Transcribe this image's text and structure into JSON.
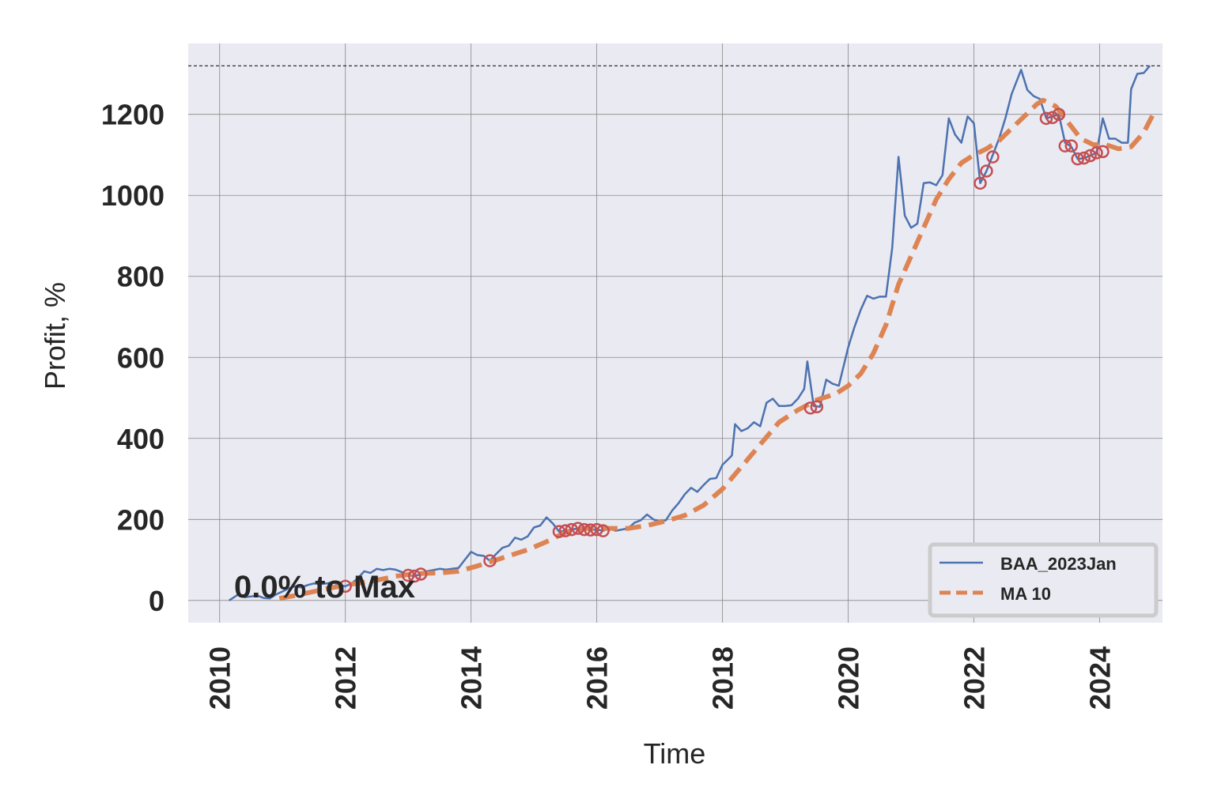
{
  "chart_data": {
    "type": "line",
    "title": "",
    "xlabel": "Time",
    "ylabel": "Profit, %",
    "xlim": [
      2009.5,
      2025.0
    ],
    "ylim": [
      -55,
      1375
    ],
    "x_ticks": [
      2010,
      2012,
      2014,
      2016,
      2018,
      2020,
      2022,
      2024
    ],
    "y_ticks": [
      0,
      200,
      400,
      600,
      800,
      1000,
      1200
    ],
    "grid": true,
    "legend_position": "bottom-right",
    "annotation": "0.0% to Max",
    "max_reference_line": 1320,
    "colors": {
      "background": "#eaeaf2",
      "grid": "#888888",
      "series_line": "#4c72b0",
      "moving_average": "#dd8452",
      "markers": "#c44e52"
    },
    "series": [
      {
        "name": "BAA_2023Jan",
        "style": "solid",
        "points": [
          [
            2010.15,
            0
          ],
          [
            2010.3,
            15
          ],
          [
            2010.4,
            8
          ],
          [
            2010.5,
            10
          ],
          [
            2010.6,
            12
          ],
          [
            2010.7,
            6
          ],
          [
            2010.8,
            5
          ],
          [
            2010.9,
            15
          ],
          [
            2011.0,
            22
          ],
          [
            2011.1,
            30
          ],
          [
            2011.2,
            35
          ],
          [
            2011.3,
            32
          ],
          [
            2011.4,
            38
          ],
          [
            2011.5,
            42
          ],
          [
            2011.6,
            40
          ],
          [
            2011.7,
            42
          ],
          [
            2011.8,
            45
          ],
          [
            2011.9,
            38
          ],
          [
            2012.0,
            35
          ],
          [
            2012.1,
            42
          ],
          [
            2012.2,
            55
          ],
          [
            2012.3,
            72
          ],
          [
            2012.4,
            68
          ],
          [
            2012.5,
            78
          ],
          [
            2012.6,
            75
          ],
          [
            2012.7,
            78
          ],
          [
            2012.8,
            76
          ],
          [
            2012.9,
            70
          ],
          [
            2013.0,
            62
          ],
          [
            2013.1,
            60
          ],
          [
            2013.2,
            65
          ],
          [
            2013.3,
            72
          ],
          [
            2013.4,
            75
          ],
          [
            2013.5,
            78
          ],
          [
            2013.6,
            76
          ],
          [
            2013.7,
            78
          ],
          [
            2013.8,
            80
          ],
          [
            2013.9,
            100
          ],
          [
            2014.0,
            120
          ],
          [
            2014.1,
            112
          ],
          [
            2014.2,
            110
          ],
          [
            2014.3,
            98
          ],
          [
            2014.4,
            115
          ],
          [
            2014.5,
            130
          ],
          [
            2014.6,
            135
          ],
          [
            2014.7,
            155
          ],
          [
            2014.8,
            150
          ],
          [
            2014.9,
            158
          ],
          [
            2015.0,
            180
          ],
          [
            2015.1,
            185
          ],
          [
            2015.2,
            205
          ],
          [
            2015.3,
            190
          ],
          [
            2015.4,
            170
          ],
          [
            2015.5,
            172
          ],
          [
            2015.6,
            175
          ],
          [
            2015.7,
            178
          ],
          [
            2015.8,
            175
          ],
          [
            2015.9,
            174
          ],
          [
            2016.0,
            175
          ],
          [
            2016.1,
            172
          ],
          [
            2016.2,
            178
          ],
          [
            2016.3,
            172
          ],
          [
            2016.4,
            175
          ],
          [
            2016.5,
            178
          ],
          [
            2016.6,
            192
          ],
          [
            2016.7,
            198
          ],
          [
            2016.8,
            212
          ],
          [
            2016.9,
            200
          ],
          [
            2017.0,
            195
          ],
          [
            2017.1,
            198
          ],
          [
            2017.2,
            222
          ],
          [
            2017.3,
            240
          ],
          [
            2017.4,
            262
          ],
          [
            2017.5,
            278
          ],
          [
            2017.6,
            268
          ],
          [
            2017.7,
            285
          ],
          [
            2017.8,
            300
          ],
          [
            2017.9,
            302
          ],
          [
            2018.0,
            335
          ],
          [
            2018.1,
            350
          ],
          [
            2018.15,
            358
          ],
          [
            2018.2,
            435
          ],
          [
            2018.3,
            418
          ],
          [
            2018.4,
            425
          ],
          [
            2018.5,
            440
          ],
          [
            2018.6,
            430
          ],
          [
            2018.7,
            488
          ],
          [
            2018.8,
            498
          ],
          [
            2018.9,
            480
          ],
          [
            2019.0,
            480
          ],
          [
            2019.1,
            482
          ],
          [
            2019.2,
            498
          ],
          [
            2019.3,
            522
          ],
          [
            2019.35,
            590
          ],
          [
            2019.45,
            480
          ],
          [
            2019.55,
            478
          ],
          [
            2019.65,
            545
          ],
          [
            2019.75,
            535
          ],
          [
            2019.85,
            530
          ],
          [
            2020.0,
            625
          ],
          [
            2020.1,
            675
          ],
          [
            2020.2,
            718
          ],
          [
            2020.3,
            752
          ],
          [
            2020.4,
            745
          ],
          [
            2020.5,
            750
          ],
          [
            2020.6,
            750
          ],
          [
            2020.7,
            870
          ],
          [
            2020.8,
            1095
          ],
          [
            2020.9,
            950
          ],
          [
            2021.0,
            920
          ],
          [
            2021.1,
            930
          ],
          [
            2021.2,
            1030
          ],
          [
            2021.3,
            1032
          ],
          [
            2021.4,
            1025
          ],
          [
            2021.5,
            1050
          ],
          [
            2021.6,
            1190
          ],
          [
            2021.7,
            1150
          ],
          [
            2021.8,
            1130
          ],
          [
            2021.9,
            1195
          ],
          [
            2022.0,
            1178
          ],
          [
            2022.1,
            1030
          ],
          [
            2022.2,
            1060
          ],
          [
            2022.3,
            1100
          ],
          [
            2022.4,
            1140
          ],
          [
            2022.5,
            1190
          ],
          [
            2022.6,
            1250
          ],
          [
            2022.7,
            1290
          ],
          [
            2022.75,
            1310
          ],
          [
            2022.85,
            1260
          ],
          [
            2022.95,
            1245
          ],
          [
            2023.05,
            1238
          ],
          [
            2023.15,
            1190
          ],
          [
            2023.25,
            1195
          ],
          [
            2023.35,
            1200
          ],
          [
            2023.45,
            1130
          ],
          [
            2023.55,
            1120
          ],
          [
            2023.65,
            1090
          ],
          [
            2023.75,
            1092
          ],
          [
            2023.85,
            1098
          ],
          [
            2023.95,
            1105
          ],
          [
            2024.05,
            1190
          ],
          [
            2024.15,
            1140
          ],
          [
            2024.25,
            1140
          ],
          [
            2024.35,
            1130
          ],
          [
            2024.45,
            1130
          ],
          [
            2024.5,
            1262
          ],
          [
            2024.6,
            1300
          ],
          [
            2024.7,
            1302
          ],
          [
            2024.8,
            1320
          ]
        ]
      },
      {
        "name": "MA 10",
        "style": "dashed",
        "points": [
          [
            2010.95,
            5
          ],
          [
            2011.2,
            12
          ],
          [
            2011.5,
            22
          ],
          [
            2011.8,
            32
          ],
          [
            2012.1,
            40
          ],
          [
            2012.5,
            50
          ],
          [
            2012.8,
            60
          ],
          [
            2013.1,
            66
          ],
          [
            2013.5,
            68
          ],
          [
            2013.8,
            72
          ],
          [
            2014.1,
            85
          ],
          [
            2014.5,
            105
          ],
          [
            2014.9,
            125
          ],
          [
            2015.2,
            145
          ],
          [
            2015.5,
            168
          ],
          [
            2015.8,
            178
          ],
          [
            2016.1,
            178
          ],
          [
            2016.5,
            178
          ],
          [
            2016.8,
            185
          ],
          [
            2017.1,
            196
          ],
          [
            2017.4,
            210
          ],
          [
            2017.7,
            235
          ],
          [
            2018.0,
            275
          ],
          [
            2018.3,
            330
          ],
          [
            2018.6,
            385
          ],
          [
            2018.9,
            440
          ],
          [
            2019.2,
            470
          ],
          [
            2019.5,
            495
          ],
          [
            2019.8,
            510
          ],
          [
            2020.0,
            530
          ],
          [
            2020.2,
            560
          ],
          [
            2020.4,
            610
          ],
          [
            2020.6,
            680
          ],
          [
            2020.8,
            780
          ],
          [
            2021.0,
            850
          ],
          [
            2021.2,
            920
          ],
          [
            2021.4,
            990
          ],
          [
            2021.6,
            1040
          ],
          [
            2021.8,
            1080
          ],
          [
            2022.0,
            1100
          ],
          [
            2022.2,
            1115
          ],
          [
            2022.4,
            1135
          ],
          [
            2022.6,
            1165
          ],
          [
            2022.8,
            1195
          ],
          [
            2023.0,
            1225
          ],
          [
            2023.1,
            1235
          ],
          [
            2023.3,
            1220
          ],
          [
            2023.5,
            1180
          ],
          [
            2023.7,
            1140
          ],
          [
            2023.9,
            1125
          ],
          [
            2024.1,
            1125
          ],
          [
            2024.3,
            1115
          ],
          [
            2024.5,
            1120
          ],
          [
            2024.7,
            1155
          ],
          [
            2024.85,
            1200
          ]
        ]
      }
    ],
    "markers": [
      [
        2012.0,
        35
      ],
      [
        2013.0,
        62
      ],
      [
        2013.1,
        60
      ],
      [
        2013.2,
        65
      ],
      [
        2014.3,
        98
      ],
      [
        2015.4,
        170
      ],
      [
        2015.5,
        172
      ],
      [
        2015.6,
        175
      ],
      [
        2015.7,
        178
      ],
      [
        2015.8,
        175
      ],
      [
        2015.9,
        174
      ],
      [
        2016.0,
        175
      ],
      [
        2016.1,
        172
      ],
      [
        2019.4,
        475
      ],
      [
        2019.5,
        478
      ],
      [
        2022.1,
        1030
      ],
      [
        2022.2,
        1060
      ],
      [
        2022.3,
        1095
      ],
      [
        2023.15,
        1190
      ],
      [
        2023.25,
        1192
      ],
      [
        2023.35,
        1200
      ],
      [
        2023.45,
        1122
      ],
      [
        2023.55,
        1122
      ],
      [
        2023.65,
        1090
      ],
      [
        2023.75,
        1092
      ],
      [
        2023.85,
        1098
      ],
      [
        2023.95,
        1105
      ],
      [
        2024.05,
        1108
      ]
    ]
  }
}
